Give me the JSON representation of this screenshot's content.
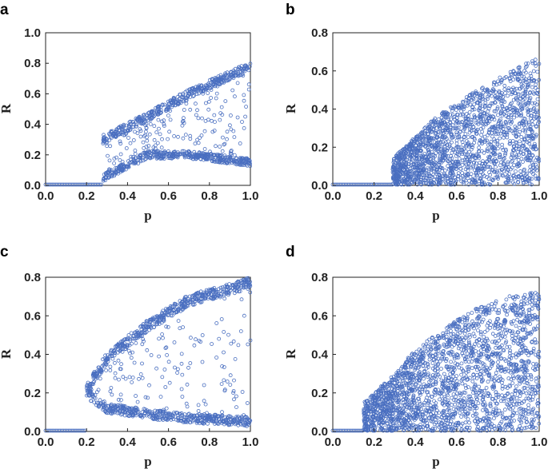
{
  "chart_data": [
    {
      "panel": "a",
      "type": "scatter",
      "xlabel": "p",
      "ylabel": "R",
      "xlim": [
        0,
        1
      ],
      "ylim": [
        0,
        1
      ],
      "xticks": [
        "0.0",
        "0.2",
        "0.4",
        "0.6",
        "0.8",
        "1.0"
      ],
      "yticks": [
        "0.0",
        "0.2",
        "0.4",
        "0.6",
        "0.8",
        "1.0"
      ],
      "color": "#4a6fc0",
      "regimes": [
        {
          "p_range": [
            0.0,
            0.28
          ],
          "R": 0.0
        },
        {
          "p_range": [
            0.28,
            1.0
          ],
          "upper_branch": [
            [
              0.28,
              0.3
            ],
            [
              0.5,
              0.45
            ],
            [
              0.7,
              0.6
            ],
            [
              1.0,
              0.78
            ]
          ],
          "lower_branch": [
            [
              0.28,
              0.05
            ],
            [
              0.5,
              0.2
            ],
            [
              0.7,
              0.2
            ],
            [
              1.0,
              0.15
            ]
          ]
        }
      ]
    },
    {
      "panel": "b",
      "type": "scatter",
      "xlabel": "p",
      "ylabel": "R",
      "xlim": [
        0,
        1
      ],
      "ylim": [
        0,
        0.8
      ],
      "xticks": [
        "0.0",
        "0.2",
        "0.4",
        "0.6",
        "0.8",
        "1.0"
      ],
      "yticks": [
        "0.0",
        "0.2",
        "0.4",
        "0.6",
        "0.8"
      ],
      "color": "#4a6fc0",
      "regimes": [
        {
          "p_range": [
            0.0,
            0.29
          ],
          "R": 0.0
        },
        {
          "p_range": [
            0.29,
            1.0
          ],
          "filled_envelope": [
            [
              0.29,
              0.14
            ],
            [
              0.5,
              0.36
            ],
            [
              0.7,
              0.5
            ],
            [
              1.0,
              0.68
            ]
          ]
        }
      ]
    },
    {
      "panel": "c",
      "type": "scatter",
      "xlabel": "p",
      "ylabel": "R",
      "xlim": [
        0,
        1
      ],
      "ylim": [
        0,
        0.8
      ],
      "xticks": [
        "0.0",
        "0.2",
        "0.4",
        "0.6",
        "0.8",
        "1.0"
      ],
      "yticks": [
        "0.0",
        "0.2",
        "0.4",
        "0.6",
        "0.8"
      ],
      "color": "#4a6fc0",
      "regimes": [
        {
          "p_range": [
            0.0,
            0.2
          ],
          "R": 0.0
        },
        {
          "p_range": [
            0.2,
            1.0
          ],
          "upper_branch": [
            [
              0.2,
              0.22
            ],
            [
              0.3,
              0.38
            ],
            [
              0.5,
              0.55
            ],
            [
              0.7,
              0.68
            ],
            [
              1.0,
              0.77
            ]
          ],
          "lower_branch": [
            [
              0.2,
              0.2
            ],
            [
              0.3,
              0.12
            ],
            [
              0.5,
              0.09
            ],
            [
              0.7,
              0.07
            ],
            [
              1.0,
              0.05
            ]
          ]
        }
      ]
    },
    {
      "panel": "d",
      "type": "scatter",
      "xlabel": "p",
      "ylabel": "R",
      "xlim": [
        0,
        1
      ],
      "ylim": [
        0,
        0.8
      ],
      "xticks": [
        "0.0",
        "0.2",
        "0.4",
        "0.6",
        "0.8",
        "1.0"
      ],
      "yticks": [
        "0.0",
        "0.2",
        "0.4",
        "0.6",
        "0.8"
      ],
      "color": "#4a6fc0",
      "regimes": [
        {
          "p_range": [
            0.0,
            0.15
          ],
          "R": 0.0
        },
        {
          "p_range": [
            0.15,
            0.55
          ],
          "filled_envelope": [
            [
              0.15,
              0.15
            ],
            [
              0.3,
              0.3
            ],
            [
              0.4,
              0.43
            ],
            [
              0.52,
              0.52
            ]
          ]
        },
        {
          "p_range": [
            0.55,
            1.0
          ],
          "filled_envelope": [
            [
              0.55,
              0.55
            ],
            [
              0.7,
              0.64
            ],
            [
              0.85,
              0.7
            ],
            [
              1.0,
              0.73
            ]
          ]
        }
      ]
    }
  ]
}
